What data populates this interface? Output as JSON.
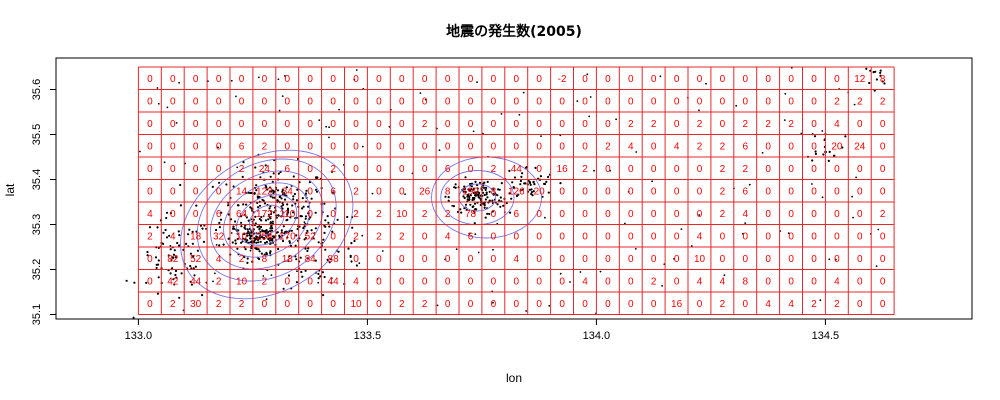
{
  "chart_data": {
    "type": "heatmap",
    "title": "地震の発生数(2005)",
    "xlabel": "lon",
    "ylabel": "lat",
    "xlim": [
      132.82,
      134.82
    ],
    "ylim": [
      35.09,
      35.67
    ],
    "x_ticks": [
      133.0,
      133.5,
      134.0,
      134.5
    ],
    "x_tick_labels": [
      "133.0",
      "133.5",
      "134.0",
      "134.5"
    ],
    "y_ticks": [
      35.1,
      35.2,
      35.3,
      35.4,
      35.5,
      35.6
    ],
    "y_tick_labels": [
      "35.1",
      "35.2",
      "35.3",
      "35.4",
      "35.5",
      "35.6"
    ],
    "grid": {
      "lon_start": 133.0,
      "lon_end": 134.65,
      "cols": 33,
      "lat_start": 35.1,
      "lat_end": 35.65,
      "rows": 11,
      "rows_top_to_bottom": [
        [
          "0",
          "0",
          "0",
          "0",
          "0",
          "0",
          "0",
          "0",
          "0",
          "0",
          "0",
          "0",
          "0",
          "0",
          "0",
          "0",
          "0",
          "0",
          "-2",
          "0",
          "0",
          "0",
          "0",
          "0",
          "0",
          "0",
          "0",
          "0",
          "0",
          "0",
          "0",
          "12",
          "8"
        ],
        [
          "0",
          "0",
          "0",
          "0",
          "0",
          "0",
          "0",
          "0",
          "0",
          "0",
          "0",
          "0",
          "0",
          "0",
          "0",
          "0",
          "0",
          "0",
          "0",
          "0",
          "0",
          "0",
          "0",
          "0",
          "0",
          "0",
          "0",
          "0",
          "0",
          "0",
          "2",
          "2",
          "2"
        ],
        [
          "0",
          "0",
          "0",
          "0",
          "0",
          "0",
          "0",
          "0",
          "0",
          "0",
          "0",
          "0",
          "2",
          "0",
          "0",
          "0",
          "0",
          "0",
          "0",
          "0",
          "0",
          "2",
          "2",
          "0",
          "2",
          "0",
          "2",
          "2",
          "2",
          "0",
          "4",
          "0",
          "0"
        ],
        [
          "0",
          "0",
          "0",
          "0",
          "6",
          "2",
          "0",
          "0",
          "0",
          "0",
          "0",
          "0",
          "0",
          "0",
          "0",
          "0",
          "0",
          "0",
          "0",
          "0",
          "2",
          "4",
          "0",
          "4",
          "2",
          "2",
          "6",
          "0",
          "0",
          "0",
          "20",
          "24",
          "0"
        ],
        [
          "0",
          "0",
          "0",
          "0",
          "2",
          "24",
          "6",
          "0",
          "2",
          "0",
          "0",
          "0",
          "0",
          "6",
          "0",
          "2",
          "44",
          "0",
          "16",
          "2",
          "0",
          "0",
          "0",
          "0",
          "0",
          "2",
          "2",
          "0",
          "0",
          "0",
          "0",
          "0",
          "0"
        ],
        [
          "0",
          "0",
          "0",
          "0",
          "14",
          "122",
          "34",
          "0",
          "6",
          "2",
          "0",
          "0",
          "26",
          "8",
          "190",
          "8",
          "126",
          "20",
          "0",
          "0",
          "0",
          "0",
          "0",
          "0",
          "0",
          "2",
          "6",
          "0",
          "0",
          "0",
          "0",
          "0",
          "0"
        ],
        [
          "4",
          "0",
          "0",
          "6",
          "64",
          "172",
          "110",
          "0",
          "0",
          "2",
          "2",
          "10",
          "2",
          "2",
          "78",
          "0",
          "6",
          "0",
          "0",
          "0",
          "0",
          "0",
          "0",
          "0",
          "0",
          "2",
          "4",
          "0",
          "0",
          "0",
          "0",
          "0",
          "2"
        ],
        [
          "2",
          "4",
          "18",
          "32",
          "10",
          "254",
          "170",
          "52",
          "0",
          "2",
          "2",
          "2",
          "0",
          "4",
          "6",
          "0",
          "0",
          "0",
          "0",
          "0",
          "0",
          "0",
          "0",
          "0",
          "4",
          "0",
          "0",
          "0",
          "0",
          "0",
          "0",
          "0",
          "0"
        ],
        [
          "0",
          "82",
          "52",
          "4",
          "2",
          "8",
          "18",
          "84",
          "88",
          "0",
          "0",
          "0",
          "0",
          "0",
          "0",
          "0",
          "4",
          "0",
          "0",
          "0",
          "0",
          "0",
          "0",
          "0",
          "10",
          "0",
          "0",
          "0",
          "0",
          "0",
          "0",
          "0",
          "0"
        ],
        [
          "0",
          "42",
          "44",
          "2",
          "10",
          "2",
          "0",
          "0",
          "44",
          "4",
          "0",
          "0",
          "0",
          "0",
          "0",
          "0",
          "0",
          "0",
          "0",
          "4",
          "0",
          "0",
          "2",
          "0",
          "4",
          "4",
          "8",
          "0",
          "0",
          "0",
          "4",
          "0",
          "0"
        ],
        [
          "0",
          "2",
          "30",
          "2",
          "2",
          "0",
          "0",
          "0",
          "0",
          "10",
          "0",
          "2",
          "2",
          "0",
          "0",
          "0",
          "0",
          "0",
          "0",
          "0",
          "0",
          "0",
          "0",
          "16",
          "0",
          "2",
          "0",
          "4",
          "4",
          "2",
          "2",
          "0",
          "0"
        ]
      ]
    },
    "contours": [
      {
        "type": "ellipse",
        "center": [
          133.28,
          35.31
        ],
        "radius": [
          0.04,
          0.03
        ],
        "rotate": -30
      },
      {
        "type": "ellipse",
        "center": [
          133.28,
          35.31
        ],
        "radius": [
          0.07,
          0.05
        ],
        "rotate": -30
      },
      {
        "type": "ellipse",
        "center": [
          133.28,
          35.31
        ],
        "radius": [
          0.1,
          0.075
        ],
        "rotate": -30
      },
      {
        "type": "ellipse",
        "center": [
          133.28,
          35.31
        ],
        "radius": [
          0.13,
          0.1
        ],
        "rotate": -30
      },
      {
        "type": "ellipse",
        "center": [
          133.28,
          35.31
        ],
        "radius": [
          0.16,
          0.125
        ],
        "rotate": -30
      },
      {
        "type": "ellipse",
        "center": [
          133.28,
          35.3
        ],
        "radius": [
          0.2,
          0.15
        ],
        "rotate": -30
      },
      {
        "type": "ellipse",
        "center": [
          133.74,
          35.36
        ],
        "radius": [
          0.04,
          0.03
        ],
        "rotate": 0
      },
      {
        "type": "ellipse",
        "center": [
          133.74,
          35.36
        ],
        "radius": [
          0.08,
          0.06
        ],
        "rotate": 0
      },
      {
        "type": "ellipse",
        "center": [
          133.76,
          35.36
        ],
        "radius": [
          0.12,
          0.09
        ],
        "rotate": 0
      }
    ],
    "clusters": [
      {
        "center": [
          133.3,
          35.33
        ],
        "spread": [
          0.06,
          0.05
        ],
        "count": 260
      },
      {
        "center": [
          133.26,
          35.27
        ],
        "spread": [
          0.03,
          0.02
        ],
        "count": 120
      },
      {
        "center": [
          133.08,
          35.22
        ],
        "spread": [
          0.04,
          0.05
        ],
        "count": 80
      },
      {
        "center": [
          133.4,
          35.24
        ],
        "spread": [
          0.05,
          0.04
        ],
        "count": 60
      },
      {
        "center": [
          133.74,
          35.36
        ],
        "spread": [
          0.03,
          0.02
        ],
        "count": 140
      },
      {
        "center": [
          133.85,
          35.39
        ],
        "spread": [
          0.03,
          0.02
        ],
        "count": 50
      },
      {
        "center": [
          134.5,
          35.48
        ],
        "spread": [
          0.02,
          0.02
        ],
        "count": 20
      },
      {
        "center": [
          134.6,
          35.62
        ],
        "spread": [
          0.02,
          0.02
        ],
        "count": 12
      }
    ],
    "grid_color": "#e8272a",
    "label_color": "#ff0000",
    "contour_color": "#7777ee",
    "point_color": "#000000"
  }
}
